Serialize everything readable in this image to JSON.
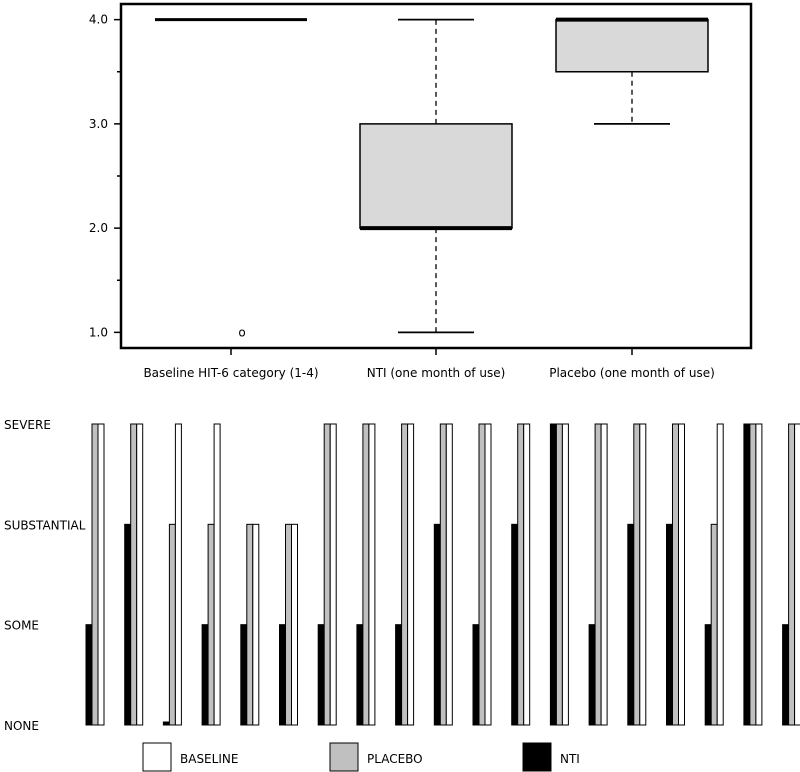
{
  "chart_data": [
    {
      "type": "boxplot",
      "title": "",
      "xlabel": "",
      "ylabel": "",
      "ylim": [
        0.85,
        4.15
      ],
      "yticks": [
        "1.0",
        "2.0",
        "3.0",
        "4.0"
      ],
      "categories": [
        "Baseline HIT-6 category (1-4)",
        "NTI (one month of use)",
        "Placebo (one month of use)"
      ],
      "boxes": [
        {
          "name": "Baseline HIT-6 category (1-4)",
          "min": 4.0,
          "q1": 4.0,
          "median": 4.0,
          "q3": 4.0,
          "max": 4.0,
          "outliers": [
            1.0
          ],
          "outlier_symbol": "o"
        },
        {
          "name": "NTI (one month of use)",
          "min": 1.0,
          "q1": 2.0,
          "median": 2.0,
          "q3": 3.0,
          "max": 4.0,
          "outliers": []
        },
        {
          "name": "Placebo (one month of use)",
          "min": 3.0,
          "q1": 3.5,
          "median": 4.0,
          "q3": 4.0,
          "max": 4.0,
          "outliers": []
        }
      ],
      "colors": {
        "box_fill": "#d9d9d9",
        "line": "#000000"
      }
    },
    {
      "type": "bar",
      "title": "",
      "xlabel": "",
      "ylabel": "",
      "ylim": [
        0,
        3
      ],
      "levels": [
        "NONE",
        "SOME",
        "SUBSTANTIAL",
        "SEVERE"
      ],
      "subjects": 19,
      "series": [
        {
          "name": "NTI",
          "color": "#000000",
          "values": [
            1,
            2,
            0,
            1,
            1,
            1,
            1,
            1,
            1,
            2,
            1,
            2,
            3,
            1,
            2,
            2,
            1,
            3,
            1
          ]
        },
        {
          "name": "PLACEBO",
          "color": "#c0c0c0",
          "values": [
            3,
            3,
            2,
            2,
            2,
            2,
            3,
            3,
            3,
            3,
            3,
            3,
            3,
            3,
            3,
            3,
            2,
            3,
            3
          ]
        },
        {
          "name": "BASELINE",
          "color": "#ffffff",
          "values": [
            3,
            3,
            3,
            3,
            2,
            2,
            3,
            3,
            3,
            3,
            3,
            3,
            3,
            3,
            3,
            3,
            3,
            3,
            3
          ]
        }
      ],
      "legend": [
        {
          "label": "BASELINE",
          "color": "#ffffff"
        },
        {
          "label": "PLACEBO",
          "color": "#c0c0c0"
        },
        {
          "label": "NTI",
          "color": "#000000"
        }
      ],
      "legend_position": "bottom"
    }
  ]
}
